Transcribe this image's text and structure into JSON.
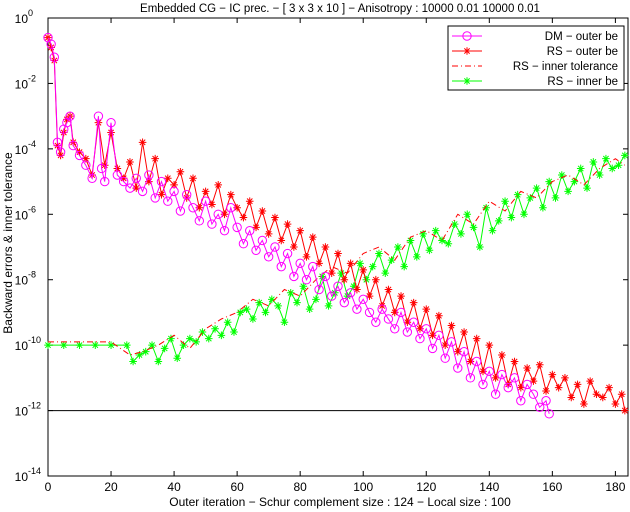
{
  "chart_data": {
    "type": "line",
    "title": "Embedded CG − IC prec. − [ 3 x 3 x 10 ] − Anisotropy : 10000 0.01 10000 0.01",
    "xlabel": "Outer iteration − Schur complement size : 124 − Local size : 100",
    "ylabel": "Backward errors & inner tolerance",
    "xlim": [
      0,
      184
    ],
    "ylim_log10": [
      -14,
      0
    ],
    "yscale": "log",
    "grid": false,
    "legend_position": "top-right",
    "x_ticks": [
      0,
      20,
      40,
      60,
      80,
      100,
      120,
      140,
      160,
      180
    ],
    "x_tick_labels": [
      "0",
      "20",
      "40",
      "60",
      "80",
      "100",
      "120",
      "140",
      "160",
      "180"
    ],
    "y_tick_exponents": [
      0,
      -2,
      -4,
      -6,
      -8,
      -10,
      -12,
      -14
    ],
    "y_tick_labels": [
      "10",
      "10",
      "10",
      "10",
      "10",
      "10",
      "10",
      "10"
    ],
    "y_tick_superscripts": [
      "0",
      "-2",
      "-4",
      "-6",
      "-8",
      "-10",
      "-12",
      "-14"
    ],
    "reference_line_log10": -12,
    "series": [
      {
        "name": "DM − outer be",
        "color": "#ff00ff",
        "marker": "circle",
        "line_style": "solid",
        "x": [
          0,
          1,
          2,
          3,
          4,
          5,
          6,
          7,
          8,
          10,
          12,
          14,
          16,
          17,
          18,
          20,
          22,
          24,
          26,
          28,
          30,
          32,
          34,
          36,
          38,
          40,
          42,
          44,
          46,
          48,
          50,
          52,
          54,
          56,
          58,
          60,
          62,
          64,
          66,
          68,
          70,
          72,
          74,
          76,
          78,
          80,
          82,
          84,
          86,
          88,
          90,
          92,
          94,
          96,
          98,
          100,
          102,
          104,
          106,
          108,
          110,
          112,
          114,
          116,
          118,
          120,
          122,
          124,
          126,
          128,
          130,
          132,
          134,
          136,
          138,
          140,
          142,
          144,
          146,
          148,
          150,
          152,
          154,
          156,
          158,
          159
        ],
        "y_log10": [
          -0.6,
          -0.8,
          -1.2,
          -3.8,
          -4.1,
          -3.4,
          -3.2,
          -3.0,
          -3.9,
          -4.2,
          -4.5,
          -4.9,
          -3.0,
          -4.6,
          -5.0,
          -3.2,
          -4.8,
          -5.0,
          -5.2,
          -4.9,
          -5.3,
          -4.8,
          -5.5,
          -5.0,
          -5.6,
          -5.3,
          -5.9,
          -5.4,
          -5.8,
          -6.2,
          -5.6,
          -6.3,
          -6.0,
          -6.5,
          -5.8,
          -6.4,
          -6.9,
          -6.5,
          -7.1,
          -6.8,
          -7.3,
          -7.0,
          -7.6,
          -7.2,
          -7.9,
          -7.5,
          -8.0,
          -7.6,
          -8.3,
          -7.9,
          -8.5,
          -8.2,
          -8.7,
          -8.4,
          -8.9,
          -8.6,
          -9.0,
          -9.3,
          -8.9,
          -9.2,
          -9.5,
          -9.0,
          -9.6,
          -9.3,
          -9.8,
          -9.5,
          -10.1,
          -9.7,
          -10.4,
          -9.9,
          -10.7,
          -10.2,
          -11.0,
          -10.5,
          -11.2,
          -10.8,
          -11.5,
          -10.9,
          -11.3,
          -11.0,
          -11.7,
          -11.2,
          -11.5,
          -11.9,
          -11.7,
          -12.1
        ]
      },
      {
        "name": "RS − outer be",
        "color": "#ff0000",
        "marker": "star",
        "line_style": "solid",
        "x": [
          0,
          1,
          2,
          3,
          4,
          5,
          6,
          7,
          8,
          10,
          12,
          14,
          16,
          18,
          20,
          22,
          24,
          26,
          28,
          30,
          32,
          34,
          36,
          38,
          40,
          42,
          44,
          46,
          48,
          50,
          52,
          54,
          56,
          58,
          60,
          62,
          64,
          66,
          68,
          70,
          72,
          74,
          76,
          78,
          80,
          82,
          84,
          86,
          88,
          90,
          92,
          94,
          96,
          98,
          100,
          102,
          104,
          106,
          108,
          110,
          112,
          114,
          116,
          118,
          120,
          122,
          124,
          126,
          128,
          130,
          132,
          134,
          136,
          138,
          140,
          142,
          144,
          146,
          148,
          150,
          152,
          154,
          156,
          158,
          160,
          162,
          164,
          166,
          168,
          170,
          172,
          174,
          176,
          178,
          180,
          182,
          183
        ],
        "y_log10": [
          -0.6,
          -0.9,
          -1.3,
          -3.9,
          -4.2,
          -3.5,
          -3.1,
          -3.0,
          -3.8,
          -4.1,
          -4.3,
          -4.8,
          -3.2,
          -4.5,
          -3.5,
          -4.6,
          -4.9,
          -4.4,
          -5.2,
          -3.8,
          -5.0,
          -4.3,
          -5.4,
          -4.9,
          -5.1,
          -4.7,
          -5.5,
          -4.9,
          -5.8,
          -5.3,
          -5.7,
          -5.1,
          -6.0,
          -5.4,
          -5.8,
          -6.1,
          -5.6,
          -6.4,
          -5.9,
          -6.6,
          -6.1,
          -6.8,
          -6.3,
          -7.0,
          -6.5,
          -7.3,
          -6.7,
          -7.5,
          -7.0,
          -7.8,
          -7.2,
          -8.0,
          -7.5,
          -8.3,
          -7.7,
          -8.5,
          -8.0,
          -8.8,
          -8.3,
          -9.0,
          -8.5,
          -9.3,
          -8.7,
          -9.5,
          -8.9,
          -9.7,
          -9.1,
          -10.0,
          -9.4,
          -10.2,
          -9.6,
          -10.5,
          -9.8,
          -10.8,
          -10.0,
          -11.0,
          -10.3,
          -11.2,
          -10.5,
          -11.3,
          -10.7,
          -11.1,
          -10.6,
          -11.4,
          -10.9,
          -11.3,
          -11.0,
          -11.6,
          -11.2,
          -11.8,
          -11.1,
          -11.5,
          -11.6,
          -11.3,
          -11.8,
          -11.5,
          -12.0
        ]
      },
      {
        "name": "RS − inner tolerance",
        "color": "#ff0000",
        "marker": "none",
        "line_style": "dash-dot",
        "x": [
          0,
          10,
          20,
          26,
          30,
          35,
          40,
          45,
          50,
          55,
          60,
          65,
          70,
          75,
          80,
          85,
          90,
          95,
          100,
          105,
          110,
          115,
          120,
          125,
          130,
          135,
          140,
          145,
          150,
          155,
          160,
          165,
          170,
          175,
          180,
          183
        ],
        "y_log10": [
          -9.9,
          -9.9,
          -9.9,
          -10.3,
          -10.2,
          -10.0,
          -9.7,
          -10.1,
          -9.5,
          -9.2,
          -9.0,
          -8.6,
          -8.8,
          -8.3,
          -8.5,
          -8.0,
          -7.6,
          -7.8,
          -7.2,
          -7.0,
          -7.4,
          -6.7,
          -6.5,
          -6.8,
          -6.0,
          -6.3,
          -5.6,
          -5.9,
          -5.3,
          -5.5,
          -5.0,
          -4.8,
          -5.1,
          -4.6,
          -4.3,
          -4.5
        ]
      },
      {
        "name": "RS − inner be",
        "color": "#00ff00",
        "marker": "star",
        "line_style": "solid",
        "x": [
          0,
          5,
          10,
          15,
          20,
          25,
          27,
          29,
          31,
          33,
          35,
          37,
          39,
          41,
          43,
          45,
          47,
          49,
          51,
          53,
          55,
          57,
          59,
          61,
          63,
          65,
          67,
          69,
          71,
          73,
          75,
          77,
          79,
          81,
          83,
          85,
          87,
          89,
          91,
          93,
          95,
          97,
          99,
          101,
          103,
          105,
          107,
          109,
          111,
          113,
          115,
          117,
          119,
          121,
          123,
          125,
          127,
          129,
          131,
          133,
          135,
          137,
          139,
          141,
          143,
          145,
          147,
          149,
          151,
          153,
          155,
          157,
          159,
          161,
          163,
          165,
          167,
          169,
          171,
          173,
          175,
          177,
          179,
          181,
          183
        ],
        "y_log10": [
          -10.0,
          -10.0,
          -10.0,
          -10.0,
          -10.0,
          -10.0,
          -10.5,
          -10.3,
          -10.2,
          -10.0,
          -10.5,
          -10.1,
          -9.8,
          -10.4,
          -10.0,
          -9.8,
          -9.9,
          -9.6,
          -9.8,
          -9.5,
          -9.7,
          -9.3,
          -9.6,
          -9.0,
          -8.9,
          -9.2,
          -8.7,
          -9.0,
          -8.6,
          -8.8,
          -9.3,
          -8.4,
          -8.7,
          -8.2,
          -8.9,
          -8.6,
          -7.9,
          -8.8,
          -8.4,
          -7.8,
          -8.5,
          -8.2,
          -7.5,
          -8.0,
          -7.6,
          -7.2,
          -7.8,
          -7.4,
          -7.0,
          -7.6,
          -6.8,
          -7.3,
          -6.6,
          -7.1,
          -6.5,
          -6.8,
          -6.9,
          -6.3,
          -6.6,
          -6.0,
          -6.4,
          -7.0,
          -5.8,
          -6.5,
          -6.2,
          -5.6,
          -6.1,
          -5.4,
          -6.0,
          -5.5,
          -5.2,
          -5.8,
          -5.0,
          -5.5,
          -4.8,
          -5.3,
          -5.0,
          -4.6,
          -5.2,
          -4.4,
          -4.8,
          -4.3,
          -4.6,
          -4.5,
          -4.2
        ]
      }
    ]
  }
}
